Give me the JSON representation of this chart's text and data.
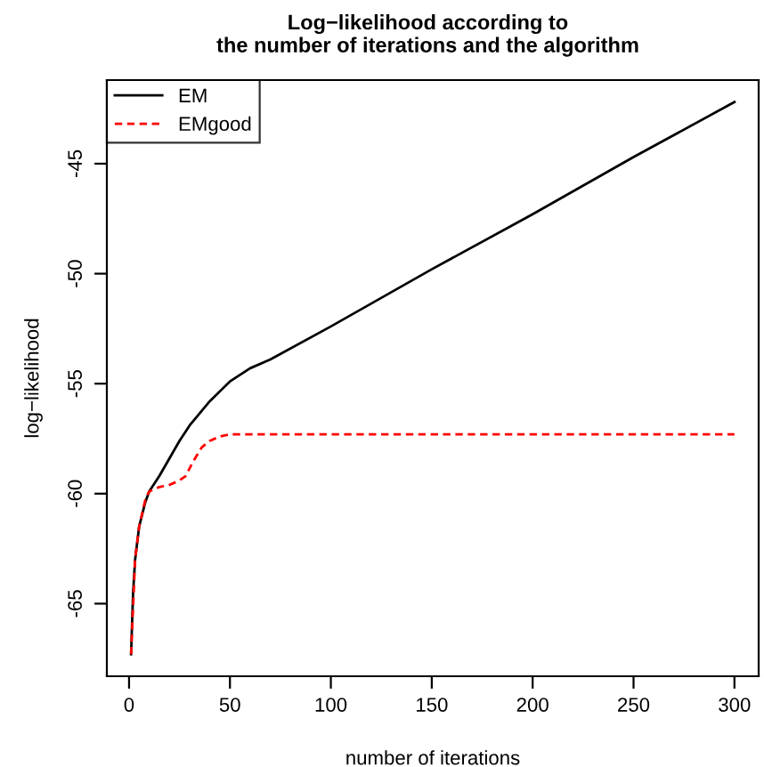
{
  "chart_data": {
    "type": "line",
    "title": "Log−likelihood according to\nthe number of iterations and the algorithm",
    "xlabel": "number of iterations",
    "ylabel": "log−likelihood",
    "xlim": [
      -11,
      312
    ],
    "ylim": [
      -68.3,
      -41.2
    ],
    "xticks": [
      0,
      50,
      100,
      150,
      200,
      250,
      300
    ],
    "yticks": [
      -65,
      -60,
      -55,
      -50,
      -45
    ],
    "legend": "top left",
    "grid": false,
    "series": [
      {
        "name": "EM",
        "color": "#000000",
        "line_style": "solid",
        "x": [
          1,
          2,
          3,
          5,
          8,
          10,
          15,
          20,
          25,
          30,
          40,
          50,
          60,
          70,
          100,
          150,
          200,
          250,
          300
        ],
        "values": [
          -67.3,
          -64.5,
          -63,
          -61.5,
          -60.4,
          -59.9,
          -59.2,
          -58.4,
          -57.6,
          -56.9,
          -55.8,
          -54.9,
          -54.3,
          -53.9,
          -52.4,
          -49.8,
          -47.3,
          -44.7,
          -42.2
        ]
      },
      {
        "name": "EMgood",
        "color": "#ff0000",
        "line_style": "dashed",
        "x": [
          1,
          3,
          5,
          8,
          10,
          15,
          20,
          25,
          28,
          32,
          36,
          40,
          45,
          50,
          300
        ],
        "values": [
          -67.3,
          -63,
          -61.5,
          -60.3,
          -59.9,
          -59.7,
          -59.6,
          -59.4,
          -59.2,
          -58.5,
          -57.9,
          -57.6,
          -57.4,
          -57.3,
          -57.3
        ]
      }
    ]
  }
}
